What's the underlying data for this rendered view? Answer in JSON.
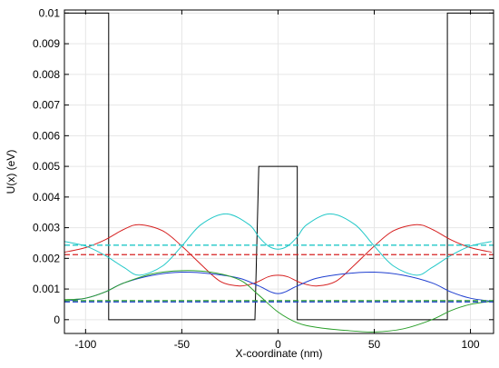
{
  "chart_data": {
    "type": "line",
    "title": "",
    "xlabel": "X-coordinate (nm)",
    "ylabel": "U(x) (eV)",
    "xlim": [
      -111,
      112
    ],
    "ylim": [
      -0.00045,
      0.0101
    ],
    "grid": true,
    "legend": "none",
    "x_ticks": [
      -100,
      -50,
      0,
      50,
      100
    ],
    "x_tick_labels": [
      "-100",
      "-50",
      "0",
      "50",
      "100"
    ],
    "y_ticks": [
      0,
      0.001,
      0.002,
      0.003,
      0.004,
      0.005,
      0.006,
      0.007,
      0.008,
      0.009,
      0.01
    ],
    "y_tick_labels": [
      "0",
      "0.001",
      "0.002",
      "0.003",
      "0.004",
      "0.005",
      "0.006",
      "0.007",
      "0.008",
      "0.009",
      "0.01"
    ],
    "colors": {
      "potential": "#000000",
      "red": "#d62020",
      "cyan": "#22c8c8",
      "blue": "#1f3fd0",
      "green": "#2ca02c",
      "grid": "#e6e6e6"
    },
    "series": [
      {
        "color": "#000000",
        "style": "solid",
        "x": [
          -111,
          -90,
          -90,
          -88,
          -88,
          -12,
          -12,
          -10,
          -10,
          10,
          10,
          12,
          12,
          88,
          88,
          90,
          90,
          112
        ],
        "y": [
          0.01,
          0.01,
          0.01,
          0.01,
          0,
          0,
          0,
          0.005,
          0.005,
          0.005,
          0,
          0,
          0,
          0,
          0.01,
          0.01,
          0.01,
          0.01
        ]
      },
      {
        "color": "#d62020",
        "style": "solid",
        "x": [
          -111,
          -100,
          -90,
          -80,
          -72,
          -60,
          -50,
          -40,
          -30,
          -20,
          -12,
          -5,
          0,
          5,
          12,
          20,
          30,
          40,
          50,
          60,
          72,
          80,
          90,
          100,
          111
        ],
        "y": [
          0.0022,
          0.00235,
          0.0026,
          0.00295,
          0.0031,
          0.0029,
          0.0024,
          0.0018,
          0.00125,
          0.0011,
          0.0012,
          0.0014,
          0.00145,
          0.0014,
          0.0012,
          0.0011,
          0.00125,
          0.0018,
          0.0024,
          0.0029,
          0.0031,
          0.00295,
          0.0026,
          0.00235,
          0.0022
        ]
      },
      {
        "color": "#22c8c8",
        "style": "solid",
        "x": [
          -111,
          -100,
          -90,
          -80,
          -72,
          -60,
          -50,
          -40,
          -27,
          -15,
          -10,
          -5,
          0,
          5,
          10,
          15,
          27,
          40,
          50,
          60,
          72,
          80,
          90,
          100,
          111
        ],
        "y": [
          0.00255,
          0.0024,
          0.0021,
          0.0017,
          0.00145,
          0.00175,
          0.0024,
          0.0031,
          0.00345,
          0.0031,
          0.0027,
          0.0024,
          0.0023,
          0.0024,
          0.0027,
          0.0031,
          0.00345,
          0.0031,
          0.0024,
          0.00175,
          0.00145,
          0.0017,
          0.0021,
          0.0024,
          0.00255
        ]
      },
      {
        "color": "#1f3fd0",
        "style": "solid",
        "x": [
          -111,
          -100,
          -90,
          -80,
          -65,
          -50,
          -35,
          -20,
          -10,
          0,
          10,
          20,
          35,
          50,
          65,
          80,
          90,
          100,
          111
        ],
        "y": [
          0.0006,
          0.0007,
          0.0009,
          0.0012,
          0.00145,
          0.00155,
          0.0015,
          0.00135,
          0.0011,
          0.00085,
          0.0011,
          0.00135,
          0.0015,
          0.00155,
          0.00145,
          0.0012,
          0.0009,
          0.0007,
          0.0006
        ]
      },
      {
        "color": "#2ca02c",
        "style": "solid",
        "x": [
          -111,
          -100,
          -90,
          -80,
          -65,
          -50,
          -35,
          -20,
          -10,
          0,
          10,
          20,
          35,
          50,
          65,
          80,
          90,
          100,
          111
        ],
        "y": [
          0.00065,
          0.0007,
          0.0009,
          0.0012,
          0.0015,
          0.0016,
          0.00155,
          0.0013,
          0.0008,
          0.00025,
          -0.0001,
          -0.00025,
          -0.00035,
          -0.0004,
          -0.0003,
          0.0,
          0.0003,
          0.0005,
          0.0006
        ]
      },
      {
        "color": "#d62020",
        "style": "dashed",
        "x": [
          -111,
          112
        ],
        "y": [
          0.00212,
          0.00212
        ]
      },
      {
        "color": "#22c8c8",
        "style": "dashed",
        "x": [
          -111,
          112
        ],
        "y": [
          0.00243,
          0.00243
        ]
      },
      {
        "color": "#1f3fd0",
        "style": "dashed",
        "x": [
          -111,
          112
        ],
        "y": [
          0.00058,
          0.00058
        ]
      },
      {
        "color": "#2ca02c",
        "style": "dashed",
        "x": [
          -111,
          112
        ],
        "y": [
          0.00062,
          0.00062
        ]
      }
    ]
  }
}
